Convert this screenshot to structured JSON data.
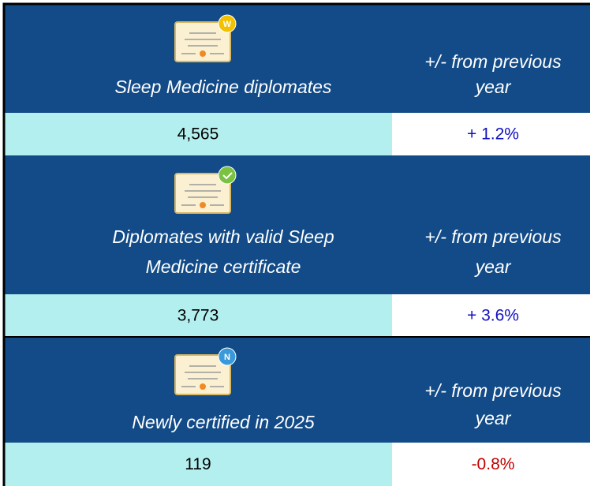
{
  "sections": [
    {
      "label": [
        "Sleep Medicine diplomates"
      ],
      "badge": "W",
      "change_label": [
        "+/- from previous",
        "year"
      ],
      "value": "4,565",
      "change": "+ 1.2%",
      "direction": "up"
    },
    {
      "label": [
        "Diplomates with valid Sleep",
        "Medicine certificate"
      ],
      "badge": null,
      "change_label": [
        "+/- from previous",
        "year"
      ],
      "value": "3,773",
      "change": "+ 3.6%",
      "direction": "up"
    },
    {
      "label": [
        "Newly certified in 2025"
      ],
      "badge": "N",
      "change_label": [
        "+/- from previous",
        "year"
      ],
      "value": "119",
      "change": "-0.8%",
      "direction": "down"
    }
  ]
}
